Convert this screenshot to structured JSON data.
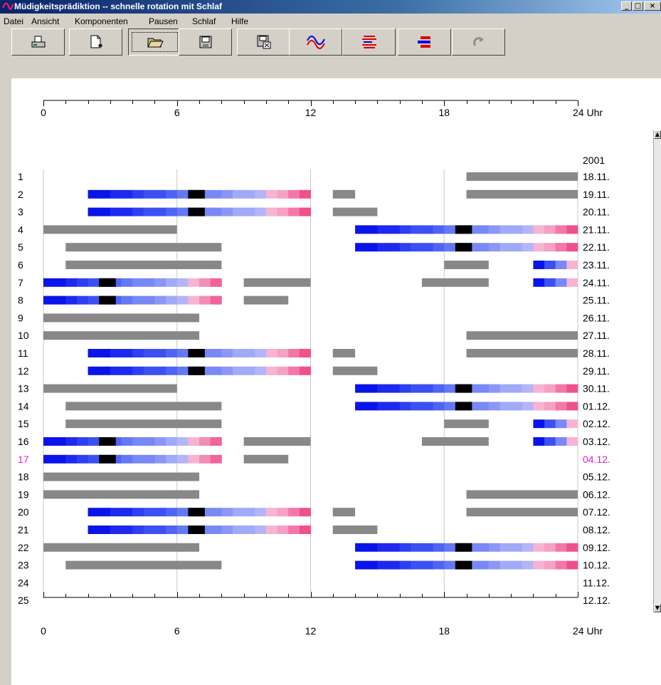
{
  "window": {
    "title": "Müdigkeitsprädiktion -- schnelle rotation mit Schlaf",
    "minimize": "_",
    "maximize": "□",
    "close": "×"
  },
  "menu": [
    "Datei",
    "Ansicht",
    "Komponenten",
    "Pausen",
    "Schlaf",
    "Hilfe"
  ],
  "toolbar": [
    {
      "icon": "printer-icon"
    },
    {
      "icon": "new-document-icon"
    },
    {
      "icon": "open-folder-icon",
      "pressed": true
    },
    {
      "icon": "save-disk-icon"
    },
    {
      "icon": "export-disk-icon"
    },
    {
      "icon": "curves-icon"
    },
    {
      "icon": "red-bars-icon"
    },
    {
      "icon": "red-blue-bars-icon"
    },
    {
      "icon": "redo-icon",
      "disabled": true
    }
  ],
  "colors": {
    "sleep": "#888888",
    "wake_marker": "#000000",
    "highlight_row": "#e020c0",
    "grid": "#c8c8c8",
    "blue_scale": [
      "#0a14e8",
      "#1e28ee",
      "#2d3ff0",
      "#3c50f2",
      "#5064f4",
      "#6478f4",
      "#7888f6",
      "#8c96f6",
      "#a0aaf8",
      "#b4b4f8"
    ],
    "pink_scale": [
      "#f6b4d2",
      "#f6a0c3",
      "#f48cb4",
      "#f278a8",
      "#f0649a",
      "#f0508c",
      "#ee3c80"
    ]
  },
  "chart_data": {
    "type": "gantt-timeline",
    "x_unit": "Uhr",
    "x_ticks": [
      "0",
      "6",
      "12",
      "18",
      "24 Uhr"
    ],
    "xlim": [
      0,
      24
    ],
    "year_label": "2001",
    "highlight_row": "17",
    "rows": [
      {
        "row": "1",
        "date": "18.11.",
        "segments": [
          {
            "type": "sleep",
            "start": 19,
            "end": 24
          }
        ]
      },
      {
        "row": "2",
        "date": "19.11.",
        "segments": [
          {
            "type": "sleep",
            "start": 13,
            "end": 14
          },
          {
            "type": "sleep",
            "start": 19,
            "end": 24
          },
          {
            "type": "shift",
            "start": 2,
            "end": 12,
            "wake": 6.5
          }
        ]
      },
      {
        "row": "3",
        "date": "20.11.",
        "segments": [
          {
            "type": "sleep",
            "start": 13,
            "end": 15
          },
          {
            "type": "shift",
            "start": 2,
            "end": 12,
            "wake": 6.5
          }
        ]
      },
      {
        "row": "4",
        "date": "21.11.",
        "segments": [
          {
            "type": "sleep",
            "start": 0,
            "end": 6
          },
          {
            "type": "shift",
            "start": 14,
            "end": 24,
            "wake": 18.5
          }
        ]
      },
      {
        "row": "5",
        "date": "22.11.",
        "segments": [
          {
            "type": "sleep",
            "start": 1,
            "end": 8
          },
          {
            "type": "shift",
            "start": 14,
            "end": 24,
            "wake": 18.5
          }
        ]
      },
      {
        "row": "6",
        "date": "23.11.",
        "segments": [
          {
            "type": "sleep",
            "start": 1,
            "end": 8
          },
          {
            "type": "sleep",
            "start": 18,
            "end": 20
          },
          {
            "type": "shift",
            "start": 22,
            "end": 24
          }
        ]
      },
      {
        "row": "7",
        "date": "24.11.",
        "segments": [
          {
            "type": "shift",
            "start": 0,
            "end": 8,
            "wake": 2.5
          },
          {
            "type": "sleep",
            "start": 9,
            "end": 12
          },
          {
            "type": "sleep",
            "start": 17,
            "end": 20
          },
          {
            "type": "shift",
            "start": 22,
            "end": 24
          }
        ]
      },
      {
        "row": "8",
        "date": "25.11.",
        "segments": [
          {
            "type": "shift",
            "start": 0,
            "end": 8,
            "wake": 2.5
          },
          {
            "type": "sleep",
            "start": 9,
            "end": 11
          }
        ]
      },
      {
        "row": "9",
        "date": "26.11.",
        "segments": [
          {
            "type": "sleep",
            "start": 0,
            "end": 7
          }
        ]
      },
      {
        "row": "10",
        "date": "27.11.",
        "segments": [
          {
            "type": "sleep",
            "start": 0,
            "end": 7
          },
          {
            "type": "sleep",
            "start": 19,
            "end": 24
          }
        ]
      },
      {
        "row": "11",
        "date": "28.11.",
        "segments": [
          {
            "type": "sleep",
            "start": 13,
            "end": 14
          },
          {
            "type": "sleep",
            "start": 19,
            "end": 24
          },
          {
            "type": "shift",
            "start": 2,
            "end": 12,
            "wake": 6.5
          }
        ]
      },
      {
        "row": "12",
        "date": "29.11.",
        "segments": [
          {
            "type": "sleep",
            "start": 13,
            "end": 15
          },
          {
            "type": "shift",
            "start": 2,
            "end": 12,
            "wake": 6.5
          }
        ]
      },
      {
        "row": "13",
        "date": "30.11.",
        "segments": [
          {
            "type": "sleep",
            "start": 0,
            "end": 6
          },
          {
            "type": "shift",
            "start": 14,
            "end": 24,
            "wake": 18.5
          }
        ]
      },
      {
        "row": "14",
        "date": "01.12.",
        "segments": [
          {
            "type": "sleep",
            "start": 1,
            "end": 8
          },
          {
            "type": "shift",
            "start": 14,
            "end": 24,
            "wake": 18.5
          }
        ]
      },
      {
        "row": "15",
        "date": "02.12.",
        "segments": [
          {
            "type": "sleep",
            "start": 1,
            "end": 8
          },
          {
            "type": "sleep",
            "start": 18,
            "end": 20
          },
          {
            "type": "shift",
            "start": 22,
            "end": 24
          }
        ]
      },
      {
        "row": "16",
        "date": "03.12.",
        "segments": [
          {
            "type": "shift",
            "start": 0,
            "end": 8,
            "wake": 2.5
          },
          {
            "type": "sleep",
            "start": 9,
            "end": 12
          },
          {
            "type": "sleep",
            "start": 17,
            "end": 20
          },
          {
            "type": "shift",
            "start": 22,
            "end": 24
          }
        ]
      },
      {
        "row": "17",
        "date": "04.12.",
        "segments": [
          {
            "type": "shift",
            "start": 0,
            "end": 8,
            "wake": 2.5
          },
          {
            "type": "sleep",
            "start": 9,
            "end": 11
          }
        ]
      },
      {
        "row": "18",
        "date": "05.12.",
        "segments": [
          {
            "type": "sleep",
            "start": 0,
            "end": 7
          }
        ]
      },
      {
        "row": "19",
        "date": "06.12.",
        "segments": [
          {
            "type": "sleep",
            "start": 0,
            "end": 7
          },
          {
            "type": "sleep",
            "start": 19,
            "end": 24
          }
        ]
      },
      {
        "row": "20",
        "date": "07.12.",
        "segments": [
          {
            "type": "sleep",
            "start": 13,
            "end": 14
          },
          {
            "type": "sleep",
            "start": 19,
            "end": 24
          },
          {
            "type": "shift",
            "start": 2,
            "end": 12,
            "wake": 6.5
          }
        ]
      },
      {
        "row": "21",
        "date": "08.12.",
        "segments": [
          {
            "type": "sleep",
            "start": 13,
            "end": 15
          },
          {
            "type": "shift",
            "start": 2,
            "end": 12,
            "wake": 6.5
          }
        ]
      },
      {
        "row": "22",
        "date": "09.12.",
        "segments": [
          {
            "type": "sleep",
            "start": 0,
            "end": 7
          },
          {
            "type": "shift",
            "start": 14,
            "end": 24,
            "wake": 18.5
          }
        ]
      },
      {
        "row": "23",
        "date": "10.12.",
        "segments": [
          {
            "type": "sleep",
            "start": 1,
            "end": 8
          },
          {
            "type": "shift",
            "start": 14,
            "end": 24,
            "wake": 18.5
          }
        ]
      },
      {
        "row": "24",
        "date": "11.12.",
        "segments": []
      },
      {
        "row": "25",
        "date": "12.12.",
        "segments": []
      }
    ]
  }
}
